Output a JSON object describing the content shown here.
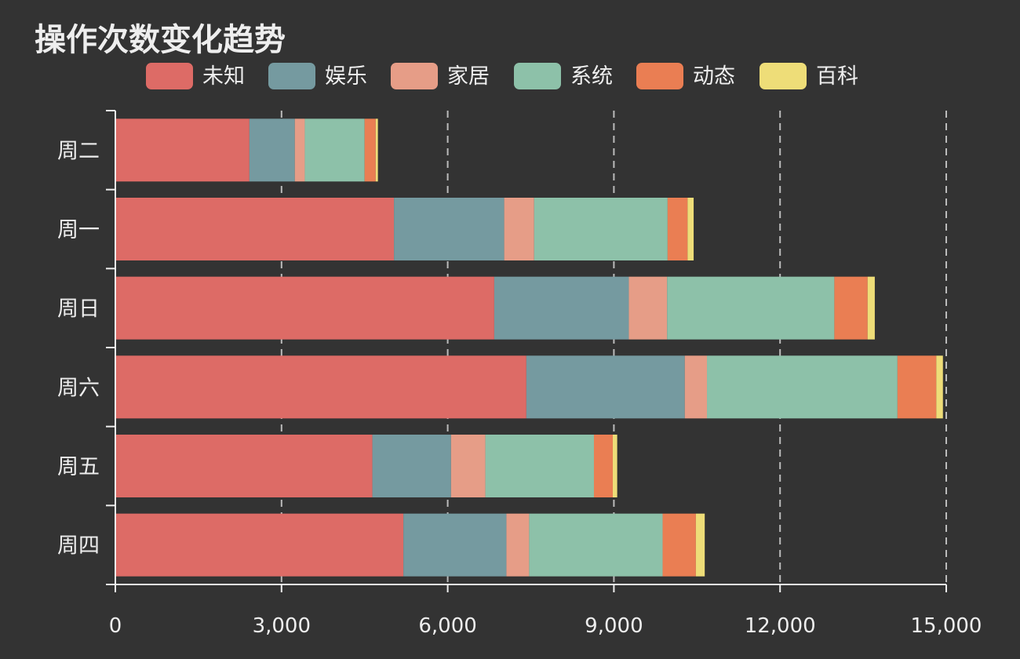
{
  "chart_data": {
    "type": "bar",
    "orientation": "horizontal",
    "stacked": true,
    "title": "操作次数变化趋势",
    "legend_position": "top",
    "categories": [
      "周二",
      "周一",
      "周日",
      "周六",
      "周五",
      "周四"
    ],
    "series": [
      {
        "name": "未知",
        "color": "#dd6b66",
        "values": [
          2420,
          5030,
          6840,
          7420,
          4640,
          5200
        ]
      },
      {
        "name": "娱乐",
        "color": "#759aa0",
        "values": [
          820,
          1990,
          2430,
          2860,
          1420,
          1860
        ]
      },
      {
        "name": "家居",
        "color": "#e69d87",
        "values": [
          180,
          540,
          690,
          400,
          620,
          410
        ]
      },
      {
        "name": "系统",
        "color": "#8dc1a9",
        "values": [
          1080,
          2410,
          3020,
          3440,
          1960,
          2410
        ]
      },
      {
        "name": "动态",
        "color": "#ea7e53",
        "values": [
          200,
          360,
          600,
          700,
          340,
          600
        ]
      },
      {
        "name": "百科",
        "color": "#eedd78",
        "values": [
          40,
          110,
          130,
          120,
          80,
          160
        ]
      }
    ],
    "x_axis": {
      "min": 0,
      "max": 15000,
      "ticks": [
        0,
        3000,
        6000,
        9000,
        12000,
        15000
      ],
      "tick_labels": [
        "0",
        "3,000",
        "6,000",
        "9,000",
        "12,000",
        "15,000"
      ]
    },
    "grid": true
  }
}
